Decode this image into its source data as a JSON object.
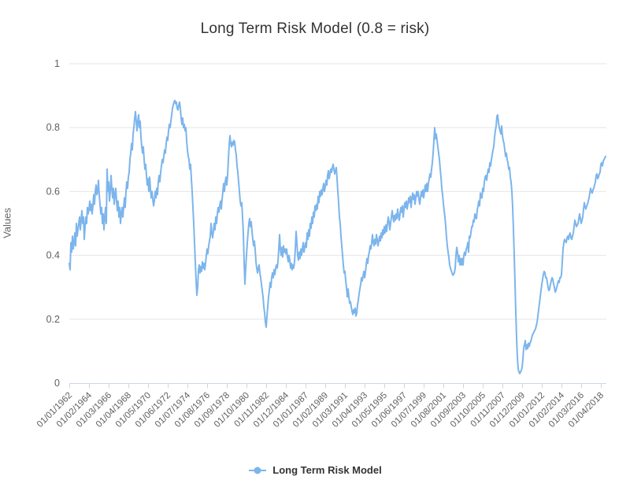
{
  "chart_data": {
    "type": "line",
    "title": "Long Term Risk Model (0.8 = risk)",
    "ylabel": "Values",
    "xlabel": "",
    "ylim": [
      0,
      1
    ],
    "yticks": [
      0,
      0.2,
      0.4,
      0.6,
      0.8,
      1
    ],
    "ytick_labels": [
      "0",
      "0.2",
      "0.4",
      "0.6",
      "0.8",
      "1"
    ],
    "grid": "horizontal-only",
    "legend_position": "bottom-center",
    "x_tick_every_n_points": 25,
    "x_tick_labels": [
      "01/01/1962",
      "01/02/1964",
      "01/03/1966",
      "01/04/1968",
      "01/05/1970",
      "01/06/1972",
      "01/07/1974",
      "01/08/1976",
      "01/09/1978",
      "01/10/1980",
      "01/11/1982",
      "01/12/1984",
      "01/01/1987",
      "01/02/1989",
      "01/03/1991",
      "01/04/1993",
      "01/05/1995",
      "01/06/1997",
      "01/07/1999",
      "01/08/2001",
      "01/09/2003",
      "01/10/2005",
      "01/11/2007",
      "01/12/2009",
      "01/01/2012",
      "01/02/2014",
      "01/03/2016",
      "01/04/2018"
    ],
    "series": [
      {
        "name": "Long Term Risk Model",
        "color": "#7cb5ec",
        "start": "1962-01",
        "frequency": "monthly",
        "values": [
          0.375,
          0.355,
          0.44,
          0.41,
          0.46,
          0.42,
          0.44,
          0.47,
          0.43,
          0.5,
          0.46,
          0.48,
          0.5,
          0.52,
          0.48,
          0.51,
          0.54,
          0.5,
          0.52,
          0.45,
          0.49,
          0.52,
          0.5,
          0.55,
          0.53,
          0.545,
          0.57,
          0.54,
          0.56,
          0.53,
          0.555,
          0.59,
          0.56,
          0.6,
          0.62,
          0.59,
          0.6,
          0.635,
          0.59,
          0.56,
          0.53,
          0.55,
          0.5,
          0.53,
          0.48,
          0.52,
          0.55,
          0.5,
          0.67,
          0.6,
          0.63,
          0.57,
          0.6,
          0.65,
          0.61,
          0.58,
          0.61,
          0.56,
          0.59,
          0.61,
          0.57,
          0.54,
          0.57,
          0.52,
          0.55,
          0.5,
          0.53,
          0.55,
          0.52,
          0.55,
          0.58,
          0.55,
          0.6,
          0.63,
          0.61,
          0.645,
          0.66,
          0.7,
          0.72,
          0.75,
          0.73,
          0.78,
          0.8,
          0.83,
          0.85,
          0.82,
          0.79,
          0.82,
          0.84,
          0.8,
          0.82,
          0.77,
          0.74,
          0.72,
          0.74,
          0.7,
          0.67,
          0.685,
          0.65,
          0.62,
          0.64,
          0.6,
          0.645,
          0.61,
          0.58,
          0.6,
          0.575,
          0.555,
          0.57,
          0.6,
          0.58,
          0.61,
          0.59,
          0.63,
          0.65,
          0.63,
          0.66,
          0.68,
          0.7,
          0.69,
          0.71,
          0.73,
          0.72,
          0.75,
          0.77,
          0.76,
          0.79,
          0.81,
          0.8,
          0.82,
          0.84,
          0.86,
          0.87,
          0.88,
          0.885,
          0.875,
          0.88,
          0.86,
          0.855,
          0.87,
          0.88,
          0.86,
          0.83,
          0.81,
          0.83,
          0.8,
          0.81,
          0.79,
          0.8,
          0.76,
          0.73,
          0.71,
          0.7,
          0.67,
          0.685,
          0.64,
          0.6,
          0.55,
          0.5,
          0.44,
          0.38,
          0.32,
          0.275,
          0.3,
          0.355,
          0.37,
          0.345,
          0.365,
          0.35,
          0.38,
          0.36,
          0.375,
          0.355,
          0.375,
          0.4,
          0.42,
          0.405,
          0.43,
          0.445,
          0.46,
          0.5,
          0.47,
          0.455,
          0.475,
          0.5,
          0.48,
          0.52,
          0.5,
          0.53,
          0.55,
          0.535,
          0.555,
          0.57,
          0.545,
          0.575,
          0.6,
          0.625,
          0.6,
          0.63,
          0.645,
          0.62,
          0.65,
          0.7,
          0.745,
          0.775,
          0.75,
          0.74,
          0.755,
          0.745,
          0.76,
          0.755,
          0.73,
          0.715,
          0.68,
          0.66,
          0.63,
          0.6,
          0.57,
          0.555,
          0.565,
          0.52,
          0.47,
          0.38,
          0.31,
          0.36,
          0.4,
          0.44,
          0.47,
          0.5,
          0.515,
          0.49,
          0.505,
          0.475,
          0.45,
          0.43,
          0.445,
          0.42,
          0.38,
          0.36,
          0.345,
          0.36,
          0.37,
          0.345,
          0.33,
          0.31,
          0.29,
          0.27,
          0.24,
          0.22,
          0.19,
          0.175,
          0.21,
          0.24,
          0.27,
          0.29,
          0.315,
          0.3,
          0.33,
          0.345,
          0.33,
          0.355,
          0.34,
          0.36,
          0.37,
          0.36,
          0.38,
          0.42,
          0.465,
          0.42,
          0.4,
          0.425,
          0.395,
          0.43,
          0.41,
          0.42,
          0.405,
          0.42,
          0.395,
          0.38,
          0.4,
          0.385,
          0.36,
          0.375,
          0.355,
          0.37,
          0.36,
          0.38,
          0.42,
          0.475,
          0.44,
          0.4,
          0.385,
          0.41,
          0.39,
          0.42,
          0.4,
          0.42,
          0.44,
          0.41,
          0.425,
          0.44,
          0.425,
          0.47,
          0.45,
          0.48,
          0.46,
          0.5,
          0.485,
          0.52,
          0.5,
          0.535,
          0.52,
          0.555,
          0.54,
          0.56,
          0.545,
          0.585,
          0.565,
          0.6,
          0.585,
          0.605,
          0.59,
          0.61,
          0.625,
          0.6,
          0.615,
          0.635,
          0.62,
          0.65,
          0.665,
          0.64,
          0.655,
          0.67,
          0.66,
          0.675,
          0.685,
          0.67,
          0.655,
          0.665,
          0.675,
          0.64,
          0.6,
          0.565,
          0.52,
          0.5,
          0.46,
          0.43,
          0.4,
          0.37,
          0.345,
          0.35,
          0.32,
          0.3,
          0.27,
          0.295,
          0.27,
          0.25,
          0.255,
          0.24,
          0.225,
          0.215,
          0.23,
          0.22,
          0.235,
          0.21,
          0.22,
          0.245,
          0.26,
          0.28,
          0.295,
          0.31,
          0.33,
          0.32,
          0.335,
          0.35,
          0.33,
          0.345,
          0.37,
          0.39,
          0.375,
          0.4,
          0.41,
          0.43,
          0.42,
          0.44,
          0.465,
          0.44,
          0.43,
          0.45,
          0.435,
          0.465,
          0.45,
          0.43,
          0.445,
          0.46,
          0.445,
          0.47,
          0.455,
          0.48,
          0.465,
          0.49,
          0.47,
          0.495,
          0.475,
          0.5,
          0.52,
          0.505,
          0.48,
          0.5,
          0.52,
          0.54,
          0.52,
          0.505,
          0.525,
          0.51,
          0.53,
          0.515,
          0.545,
          0.525,
          0.51,
          0.53,
          0.55,
          0.535,
          0.555,
          0.52,
          0.545,
          0.565,
          0.55,
          0.57,
          0.545,
          0.56,
          0.58,
          0.565,
          0.585,
          0.55,
          0.575,
          0.595,
          0.575,
          0.59,
          0.56,
          0.58,
          0.6,
          0.585,
          0.6,
          0.575,
          0.56,
          0.58,
          0.6,
          0.585,
          0.605,
          0.58,
          0.6,
          0.62,
          0.6,
          0.625,
          0.6,
          0.625,
          0.64,
          0.655,
          0.645,
          0.67,
          0.69,
          0.72,
          0.76,
          0.8,
          0.765,
          0.78,
          0.76,
          0.74,
          0.72,
          0.7,
          0.67,
          0.645,
          0.61,
          0.59,
          0.563,
          0.54,
          0.52,
          0.49,
          0.457,
          0.43,
          0.41,
          0.393,
          0.37,
          0.36,
          0.352,
          0.345,
          0.338,
          0.34,
          0.346,
          0.36,
          0.4,
          0.425,
          0.41,
          0.38,
          0.4,
          0.37,
          0.39,
          0.37,
          0.39,
          0.37,
          0.4,
          0.41,
          0.4,
          0.42,
          0.425,
          0.44,
          0.41,
          0.46,
          0.455,
          0.47,
          0.49,
          0.49,
          0.51,
          0.505,
          0.53,
          0.52,
          0.515,
          0.54,
          0.555,
          0.57,
          0.555,
          0.595,
          0.58,
          0.58,
          0.61,
          0.6,
          0.63,
          0.645,
          0.65,
          0.635,
          0.655,
          0.67,
          0.66,
          0.69,
          0.68,
          0.7,
          0.715,
          0.73,
          0.74,
          0.77,
          0.79,
          0.805,
          0.835,
          0.84,
          0.815,
          0.8,
          0.79,
          0.78,
          0.805,
          0.775,
          0.76,
          0.75,
          0.73,
          0.71,
          0.72,
          0.7,
          0.69,
          0.67,
          0.675,
          0.645,
          0.63,
          0.6,
          0.55,
          0.48,
          0.4,
          0.31,
          0.22,
          0.14,
          0.08,
          0.045,
          0.035,
          0.03,
          0.035,
          0.04,
          0.05,
          0.075,
          0.11,
          0.12,
          0.133,
          0.105,
          0.12,
          0.108,
          0.125,
          0.115,
          0.125,
          0.13,
          0.14,
          0.15,
          0.155,
          0.16,
          0.165,
          0.17,
          0.18,
          0.19,
          0.21,
          0.23,
          0.25,
          0.27,
          0.29,
          0.31,
          0.325,
          0.34,
          0.35,
          0.345,
          0.33,
          0.33,
          0.315,
          0.3,
          0.29,
          0.295,
          0.31,
          0.32,
          0.33,
          0.325,
          0.31,
          0.3,
          0.285,
          0.29,
          0.3,
          0.31,
          0.32,
          0.315,
          0.33,
          0.33,
          0.34,
          0.38,
          0.42,
          0.44,
          0.45,
          0.445,
          0.44,
          0.455,
          0.46,
          0.45,
          0.465,
          0.47,
          0.455,
          0.45,
          0.46,
          0.47,
          0.49,
          0.51,
          0.5,
          0.49,
          0.495,
          0.5,
          0.515,
          0.53,
          0.515,
          0.5,
          0.51,
          0.52,
          0.545,
          0.565,
          0.55,
          0.545,
          0.555,
          0.56,
          0.57,
          0.58,
          0.595,
          0.61,
          0.6,
          0.595,
          0.605,
          0.61,
          0.62,
          0.63,
          0.65,
          0.655,
          0.64,
          0.645,
          0.655,
          0.66,
          0.685,
          0.69,
          0.68,
          0.695,
          0.7,
          0.705,
          0.71
        ]
      }
    ]
  },
  "legend": {
    "label": "Long Term Risk Model"
  },
  "colors": {
    "series": "#7cb5ec",
    "grid": "#e6e6e6",
    "axis_line": "#ccd6eb",
    "tick_label": "#606060",
    "title": "#333333",
    "y_axis_title": "#666666",
    "legend_text": "#333333",
    "background": "#ffffff"
  }
}
